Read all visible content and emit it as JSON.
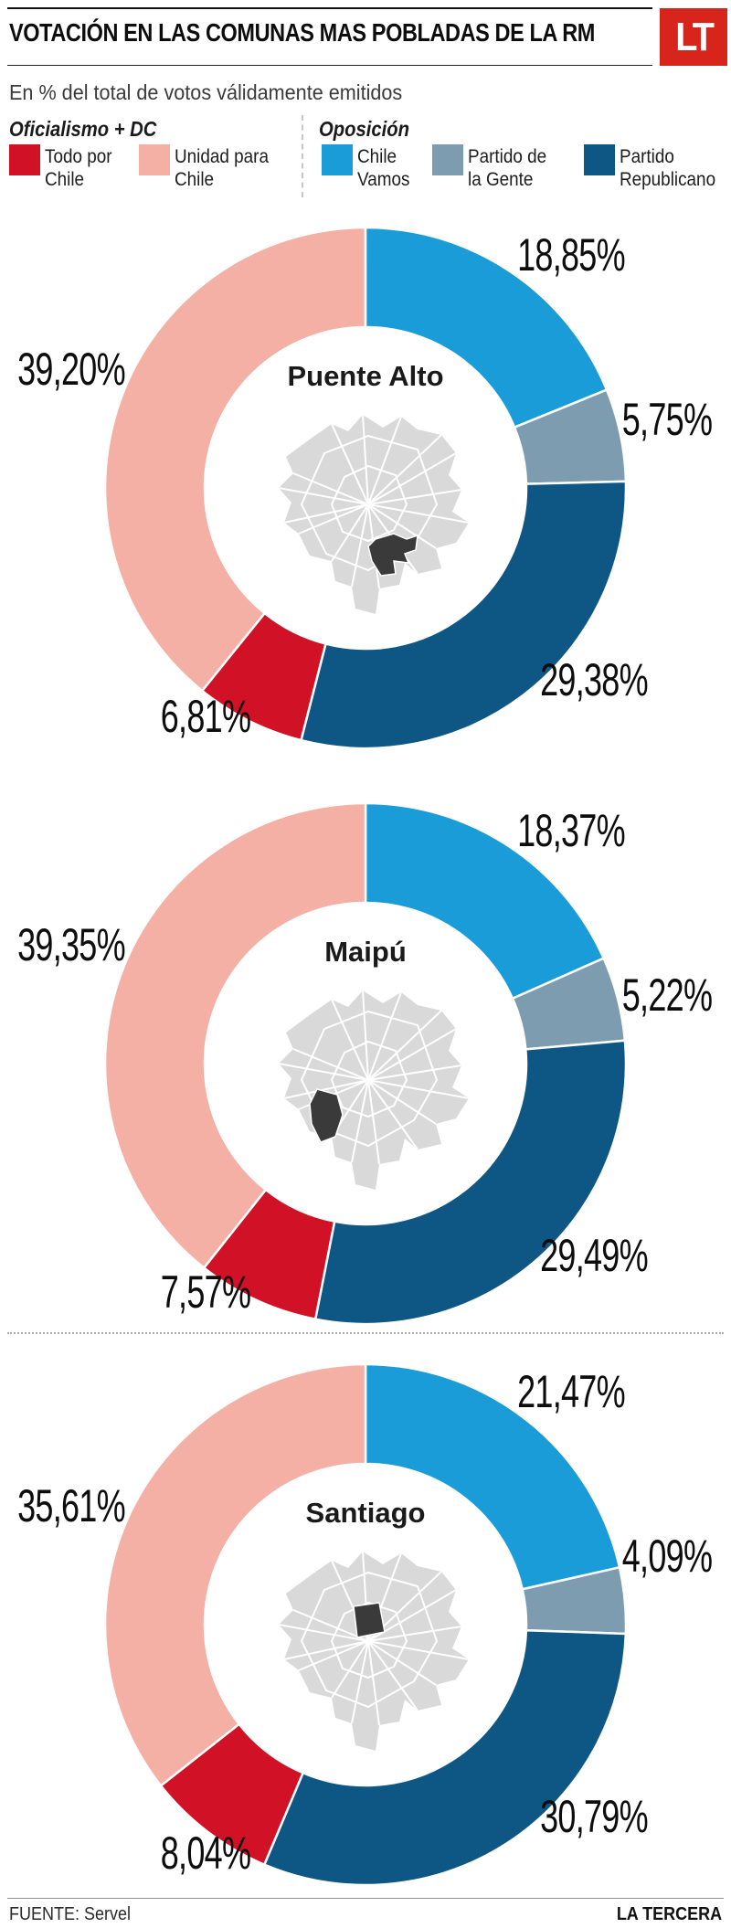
{
  "header": {
    "title": "VOTACIÓN EN LAS COMUNAS MAS POBLADAS DE LA RM",
    "subtitle": "En % del total de votos válidamente emitidos",
    "logo_text": "LT",
    "logo_color": "#d8251c"
  },
  "colors": {
    "Todo por Chile": "#d01126",
    "Unidad para Chile": "#f4b0a5",
    "Chile Vamos": "#1a9cd8",
    "Partido de la Gente": "#7e9cb0",
    "Partido Republicano": "#0e5785"
  },
  "legend": {
    "groups": [
      {
        "label": "Oficialismo + DC",
        "items": [
          {
            "party": "Todo por Chile",
            "label_lines": [
              "Todo por",
              "Chile"
            ]
          },
          {
            "party": "Unidad para Chile",
            "label_lines": [
              "Unidad para",
              "Chile"
            ]
          }
        ]
      },
      {
        "label": "Oposición",
        "items": [
          {
            "party": "Chile Vamos",
            "label_lines": [
              "Chile",
              "Vamos"
            ]
          },
          {
            "party": "Partido de la Gente",
            "label_lines": [
              "Partido de",
              "la Gente"
            ]
          },
          {
            "party": "Partido Republicano",
            "label_lines": [
              "Partido",
              "Republicano"
            ]
          }
        ]
      }
    ]
  },
  "chart_data": {
    "type": "pie",
    "variant": "donut",
    "unit": "% del total de votos válidamente emitidos",
    "decimal_format": "comma",
    "slice_order": [
      "Chile Vamos",
      "Partido de la Gente",
      "Partido Republicano",
      "Todo por Chile",
      "Unidad para Chile"
    ],
    "charts": [
      {
        "comuna": "Puente Alto",
        "map_region": "puente-alto",
        "slices": [
          {
            "party": "Chile Vamos",
            "value": 18.85
          },
          {
            "party": "Partido de la Gente",
            "value": 5.75
          },
          {
            "party": "Partido Republicano",
            "value": 29.38
          },
          {
            "party": "Todo por Chile",
            "value": 6.81
          },
          {
            "party": "Unidad para Chile",
            "value": 39.2
          }
        ]
      },
      {
        "comuna": "Maipú",
        "map_region": "maipu",
        "slices": [
          {
            "party": "Chile Vamos",
            "value": 18.37
          },
          {
            "party": "Partido de la Gente",
            "value": 5.22
          },
          {
            "party": "Partido Republicano",
            "value": 29.49
          },
          {
            "party": "Todo por Chile",
            "value": 7.57
          },
          {
            "party": "Unidad para Chile",
            "value": 39.35
          }
        ]
      },
      {
        "comuna": "Santiago",
        "map_region": "santiago",
        "slices": [
          {
            "party": "Chile Vamos",
            "value": 21.47
          },
          {
            "party": "Partido de la Gente",
            "value": 4.09
          },
          {
            "party": "Partido Republicano",
            "value": 30.79
          },
          {
            "party": "Todo por Chile",
            "value": 8.04
          },
          {
            "party": "Unidad para Chile",
            "value": 35.61
          }
        ]
      }
    ]
  },
  "footer": {
    "source": "FUENTE: Servel",
    "credit": "LA TERCERA"
  }
}
